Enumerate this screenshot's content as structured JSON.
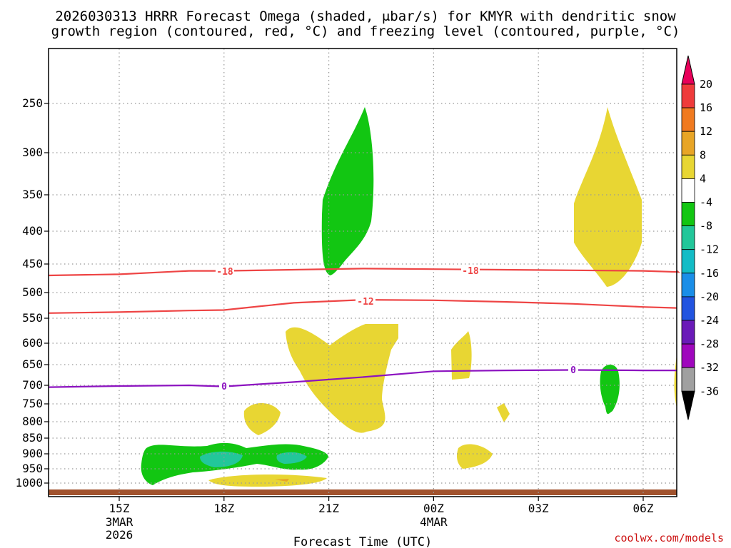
{
  "chart_data": {
    "type": "heatmap",
    "title_line1": "2026030313 HRRR Forecast Omega (shaded, μbar/s) for KMYR with dendritic snow",
    "title_line2": "growth region (contoured, red, °C) and freezing level (contoured, purple, °C)",
    "xlabel": "Forecast Time (UTC)",
    "watermark": "coolwx.com/models",
    "y_ticks": [
      "250",
      "300",
      "350",
      "400",
      "450",
      "500",
      "550",
      "600",
      "650",
      "700",
      "750",
      "800",
      "850",
      "900",
      "950",
      "1000"
    ],
    "x_ticks": [
      {
        "label": "15Z",
        "date": "3MAR",
        "year": "2026"
      },
      {
        "label": "18Z"
      },
      {
        "label": "21Z"
      },
      {
        "label": "00Z",
        "date": "4MAR"
      },
      {
        "label": "03Z"
      },
      {
        "label": "06Z"
      }
    ],
    "colorbar_labels": [
      "20",
      "16",
      "12",
      "8",
      "4",
      "-4",
      "-8",
      "-12",
      "-16",
      "-20",
      "-24",
      "-28",
      "-32",
      "-36"
    ],
    "colorbar_colors": [
      "#e8005a",
      "#ef3b3b",
      "#f07a20",
      "#e8a526",
      "#e8d633",
      "#ffffff",
      "#12c612",
      "#22c79a",
      "#12bcc6",
      "#1a8ee8",
      "#2254e0",
      "#6a1ab8",
      "#9f07bd",
      "#a0a0a0",
      "#000000"
    ],
    "contour_labels": [
      {
        "name": "dgz_top",
        "label": "-18",
        "color": "#ee4444"
      },
      {
        "name": "dgz_top_b",
        "label": "-18",
        "color": "#ee4444"
      },
      {
        "name": "dgz_bottom",
        "label": "-12",
        "color": "#ee4444"
      },
      {
        "name": "freezing",
        "label": "0",
        "color": "#8c13c0"
      },
      {
        "name": "freezing_b",
        "label": "0",
        "color": "#8c13c0"
      }
    ],
    "contours": [
      {
        "name": "minus18",
        "color": "#ee4444",
        "points": [
          [
            13,
            470
          ],
          [
            15,
            468
          ],
          [
            17,
            462
          ],
          [
            18,
            462
          ],
          [
            20,
            460
          ],
          [
            22,
            458
          ],
          [
            24,
            459
          ],
          [
            26,
            460
          ],
          [
            28,
            461
          ],
          [
            30,
            462
          ],
          [
            31,
            464
          ],
          [
            32,
            462
          ]
        ]
      },
      {
        "name": "minus12",
        "color": "#ee4444",
        "points": [
          [
            13,
            540
          ],
          [
            15,
            538
          ],
          [
            17,
            535
          ],
          [
            18,
            534
          ],
          [
            19,
            527
          ],
          [
            20,
            520
          ],
          [
            22,
            514
          ],
          [
            24,
            515
          ],
          [
            26,
            518
          ],
          [
            28,
            522
          ],
          [
            30,
            528
          ],
          [
            32,
            530
          ]
        ]
      },
      {
        "name": "zero",
        "color": "#8c13c0",
        "points": [
          [
            13,
            705
          ],
          [
            15,
            702
          ],
          [
            17,
            700
          ],
          [
            18,
            703
          ],
          [
            20,
            692
          ],
          [
            22,
            680
          ],
          [
            24,
            666
          ],
          [
            26,
            664
          ],
          [
            28,
            663
          ],
          [
            30,
            664
          ],
          [
            32,
            664
          ]
        ]
      }
    ]
  }
}
